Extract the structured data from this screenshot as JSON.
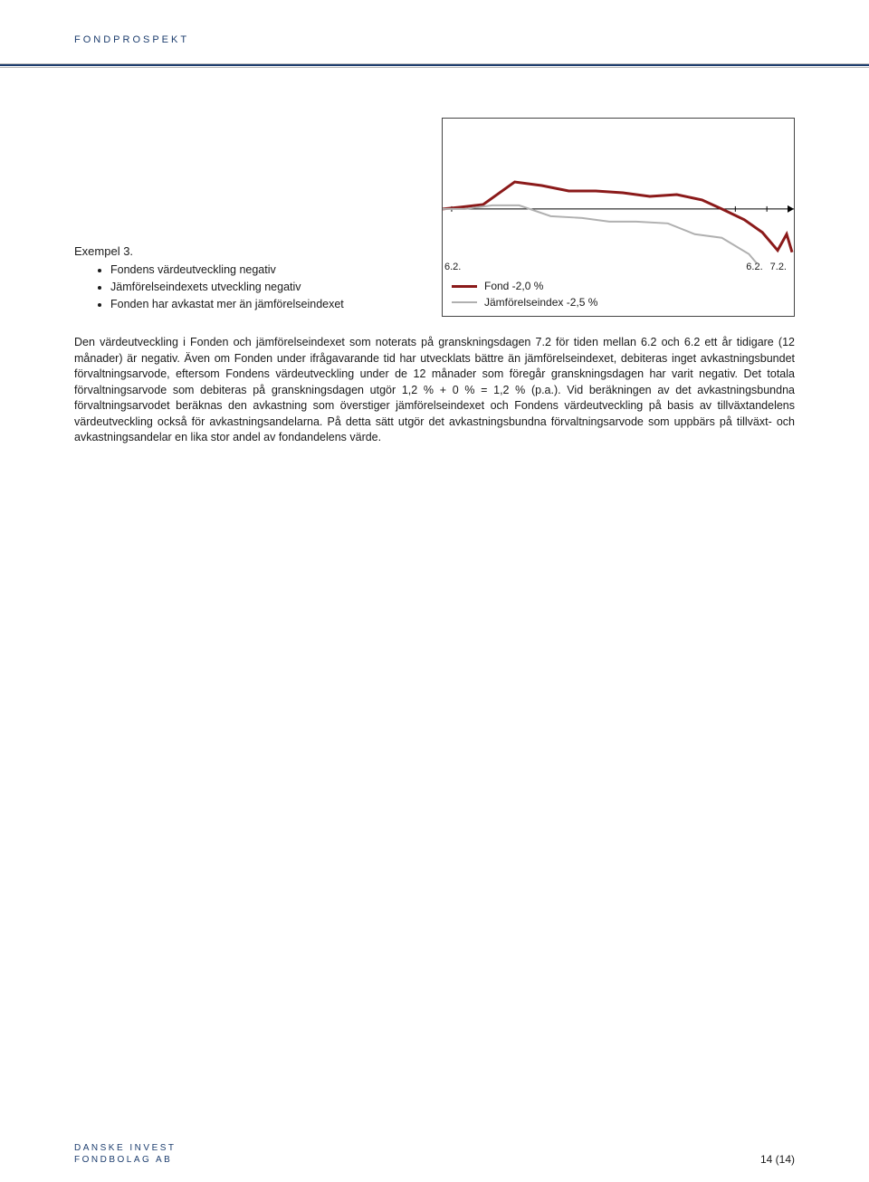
{
  "header": {
    "label": "FONDPROSPEKT"
  },
  "chart": {
    "type": "line",
    "x_ticks": [
      "6.2.",
      "6.2.",
      "7.2."
    ],
    "series": [
      {
        "name": "Fond",
        "color": "#8b1a1a",
        "stroke_width": 3,
        "points": [
          [
            0,
            100
          ],
          [
            20,
            98
          ],
          [
            45,
            95
          ],
          [
            80,
            70
          ],
          [
            110,
            74
          ],
          [
            140,
            80
          ],
          [
            170,
            80
          ],
          [
            200,
            82
          ],
          [
            230,
            86
          ],
          [
            260,
            84
          ],
          [
            288,
            90
          ],
          [
            310,
            100
          ],
          [
            335,
            112
          ],
          [
            355,
            126
          ],
          [
            372,
            146
          ],
          [
            382,
            128
          ],
          [
            388,
            148
          ]
        ]
      },
      {
        "name": "Jämförelseindex",
        "color": "#b0b0b0",
        "stroke_width": 2,
        "points": [
          [
            0,
            100
          ],
          [
            25,
            100
          ],
          [
            55,
            96
          ],
          [
            85,
            96
          ],
          [
            120,
            108
          ],
          [
            155,
            110
          ],
          [
            185,
            114
          ],
          [
            215,
            114
          ],
          [
            250,
            116
          ],
          [
            280,
            128
          ],
          [
            310,
            132
          ],
          [
            340,
            150
          ],
          [
            362,
            176
          ],
          [
            378,
            196
          ],
          [
            388,
            214
          ]
        ]
      }
    ],
    "axis_color": "#000000",
    "background_color": "#ffffff",
    "legend": [
      {
        "label_key": "legend.fond",
        "color": "#8b1a1a",
        "thick": true
      },
      {
        "label_key": "legend.index",
        "color": "#b0b0b0",
        "thick": false
      }
    ]
  },
  "legend": {
    "fond": "Fond -2,0 %",
    "index": "Jämförelseindex -2,5 %"
  },
  "example": {
    "title": "Exempel 3.",
    "bullets": [
      "Fondens värdeutveckling negativ",
      "Jämförelseindexets utveckling negativ",
      "Fonden har avkastat mer än jämförelseindexet"
    ]
  },
  "paragraph": "Den värdeutveckling i Fonden och jämförelseindexet som noterats på granskningsdagen 7.2 för tiden mellan 6.2 och 6.2 ett år tidigare (12 månader) är negativ. Även om Fonden under ifrågavarande tid har utvecklats bättre än jämförelseindexet, debiteras inget avkastningsbundet förvaltningsarvode, eftersom Fondens värdeutveckling under de 12 månader som föregår granskningsdagen har varit negativ. Det totala förvaltningsarvode som debiteras på granskningsdagen utgör 1,2 % + 0 % = 1,2 % (p.a.). Vid beräkningen av det avkastningsbundna förvaltningsarvodet beräknas den avkastning som överstiger jämförelseindexet och Fondens värdeutveckling på basis av tillväxtandelens värdeutveckling också för avkastningsandelarna. På detta sätt utgör det avkastningsbundna förvaltningsarvode som uppbärs på tillväxt- och avkastningsandelar en lika stor andel av fondandelens värde.",
  "footer": {
    "brand_line1": "DANSKE INVEST",
    "brand_line2": "FONDBOLAG AB",
    "page": "14 (14)"
  }
}
